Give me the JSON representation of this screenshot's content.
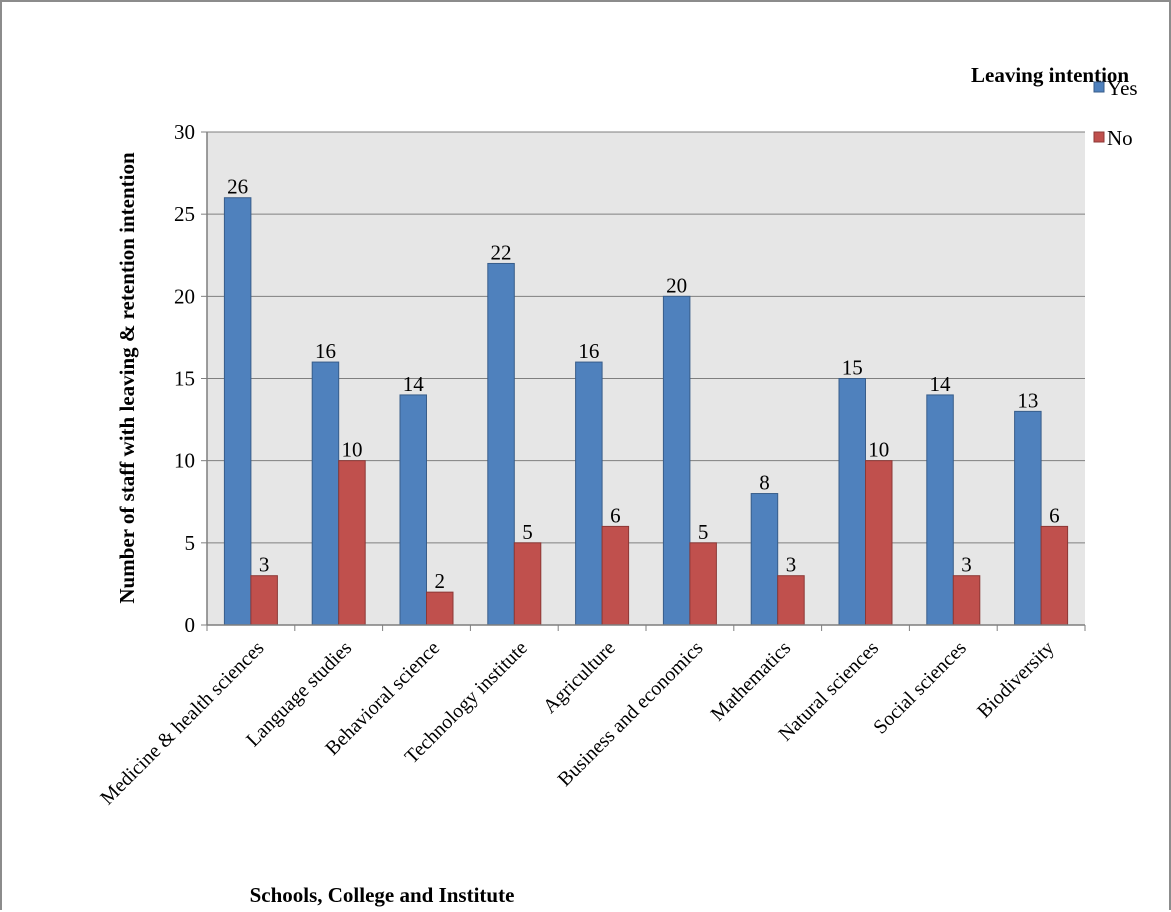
{
  "chart_data": {
    "type": "bar",
    "title": "",
    "xlabel": "Schools, College and Institute",
    "ylabel": "Number of staff with leaving & retention intention",
    "ylim": [
      0,
      30
    ],
    "yticks": [
      0,
      5,
      10,
      15,
      20,
      25,
      30
    ],
    "grid": true,
    "legend": {
      "title": "Leaving intention",
      "position": "top-right"
    },
    "categories": [
      "Medicine & health sciences",
      "Language studies",
      "Behavioral science",
      "Technology institute",
      "Agriculture",
      "Business and economics",
      "Mathematics",
      "Natural sciences",
      "Social sciences",
      "Biodiversity"
    ],
    "series": [
      {
        "name": "Yes",
        "color": "#4f81bd",
        "values": [
          26,
          16,
          14,
          22,
          16,
          20,
          8,
          15,
          14,
          13
        ]
      },
      {
        "name": "No",
        "color": "#c0504d",
        "values": [
          3,
          10,
          2,
          5,
          6,
          5,
          3,
          10,
          3,
          6
        ]
      }
    ]
  }
}
